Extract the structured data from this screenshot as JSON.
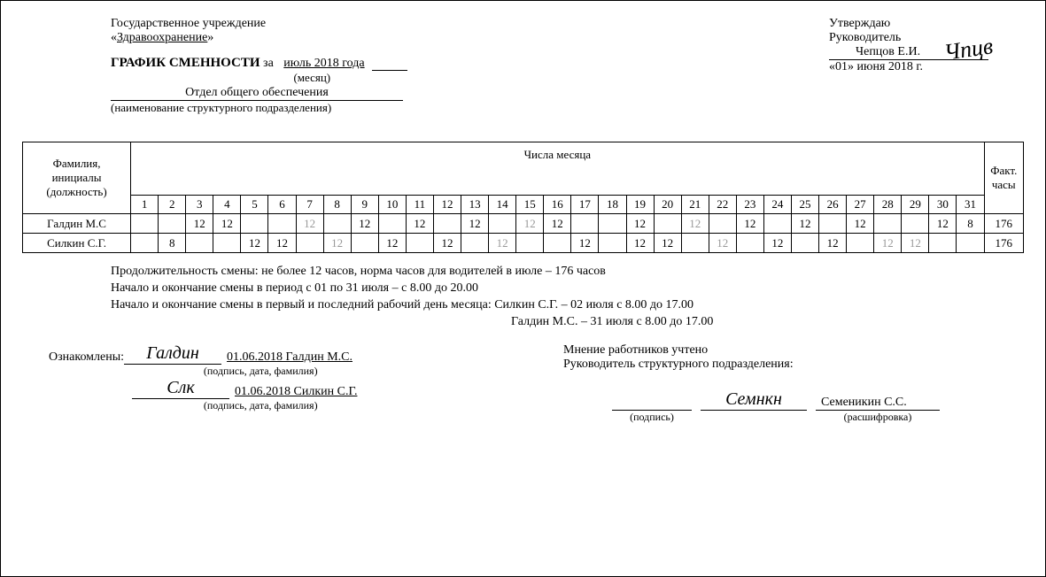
{
  "org": {
    "line1": "Государственное учреждение",
    "line2_open": "«",
    "line2_name": "Здравоохранение",
    "line2_close": "»"
  },
  "title": {
    "bold": "ГРАФИК СМЕННОСТИ",
    "za": "за",
    "month": "июль  2018 года",
    "month_label": "(месяц)"
  },
  "dept": {
    "value": "Отдел общего обеспечения",
    "label": "(наименование структурного подразделения)"
  },
  "approve": {
    "line1": "Утверждаю",
    "line2": "Руководитель",
    "name": "Чепцов Е.И.",
    "date": "«01» июня 2018 г.",
    "sig": "Чпцв"
  },
  "table": {
    "col_name": "Фамилия,\nинициалы\n(должность)",
    "col_days": "Числа месяца",
    "col_fact": "Факт.\nчасы",
    "days": [
      "1",
      "2",
      "3",
      "4",
      "5",
      "6",
      "7",
      "8",
      "9",
      "10",
      "11",
      "12",
      "13",
      "14",
      "15",
      "16",
      "17",
      "18",
      "19",
      "20",
      "21",
      "22",
      "23",
      "24",
      "25",
      "26",
      "27",
      "28",
      "29",
      "30",
      "31"
    ],
    "rows": [
      {
        "name": "Галдин М.С",
        "cells": [
          {
            "v": ""
          },
          {
            "v": ""
          },
          {
            "v": "12"
          },
          {
            "v": "12"
          },
          {
            "v": ""
          },
          {
            "v": ""
          },
          {
            "v": "12",
            "g": true
          },
          {
            "v": ""
          },
          {
            "v": "12"
          },
          {
            "v": ""
          },
          {
            "v": "12"
          },
          {
            "v": ""
          },
          {
            "v": "12"
          },
          {
            "v": ""
          },
          {
            "v": "12",
            "g": true
          },
          {
            "v": "12"
          },
          {
            "v": ""
          },
          {
            "v": ""
          },
          {
            "v": "12"
          },
          {
            "v": ""
          },
          {
            "v": "12",
            "g": true
          },
          {
            "v": ""
          },
          {
            "v": "12"
          },
          {
            "v": ""
          },
          {
            "v": "12"
          },
          {
            "v": ""
          },
          {
            "v": "12"
          },
          {
            "v": ""
          },
          {
            "v": ""
          },
          {
            "v": "12"
          },
          {
            "v": "8"
          }
        ],
        "fact": "176"
      },
      {
        "name": "Силкин С.Г.",
        "cells": [
          {
            "v": ""
          },
          {
            "v": "8"
          },
          {
            "v": ""
          },
          {
            "v": ""
          },
          {
            "v": "12"
          },
          {
            "v": "12"
          },
          {
            "v": ""
          },
          {
            "v": "12",
            "g": true
          },
          {
            "v": ""
          },
          {
            "v": "12"
          },
          {
            "v": ""
          },
          {
            "v": "12"
          },
          {
            "v": ""
          },
          {
            "v": "12",
            "g": true
          },
          {
            "v": ""
          },
          {
            "v": ""
          },
          {
            "v": "12"
          },
          {
            "v": ""
          },
          {
            "v": "12"
          },
          {
            "v": "12"
          },
          {
            "v": ""
          },
          {
            "v": "12",
            "g": true
          },
          {
            "v": ""
          },
          {
            "v": "12"
          },
          {
            "v": ""
          },
          {
            "v": "12"
          },
          {
            "v": ""
          },
          {
            "v": "12",
            "g": true
          },
          {
            "v": "12",
            "g": true
          },
          {
            "v": ""
          },
          {
            "v": ""
          }
        ],
        "fact": "176"
      }
    ]
  },
  "notes": {
    "l1": "Продолжительность смены: не более 12 часов, норма часов для водителей в июле – 176 часов",
    "l2": "Начало и окончание смены в период с 01 по 31 июля – с 8.00 до 20.00",
    "l3": "Начало и окончание смены в первый и последний рабочий день месяца: Силкин С.Г. – 02 июля с 8.00 до 17.00",
    "l4": "Галдин М.С. – 31 июля с 8.00 до 17.00"
  },
  "ack": {
    "label": "Ознакомлены:",
    "rows": [
      {
        "sig": "Галдин",
        "text": "01.06.2018 Галдин М.С."
      },
      {
        "sig": "Слк",
        "text": "01.06.2018 Силкин С.Г."
      }
    ],
    "sub": "(подпись, дата, фамилия)"
  },
  "mgr": {
    "l1": "Мнение работников учтено",
    "l2": "Руководитель структурного подразделения:",
    "sig": "Семнкн",
    "name": "Семеникин С.С.",
    "sub1": "(подпись)",
    "sub2": "(расшифровка)"
  },
  "colors": {
    "text": "#000000",
    "gray": "#999999",
    "bg": "#ffffff",
    "border": "#000000"
  }
}
